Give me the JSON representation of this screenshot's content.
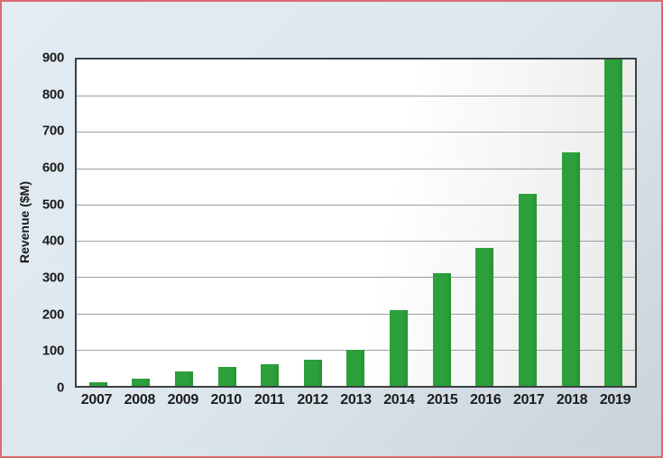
{
  "chart_data": {
    "type": "bar",
    "title": "",
    "xlabel": "",
    "ylabel": "Revenue ($M)",
    "categories": [
      "2007",
      "2008",
      "2009",
      "2010",
      "2011",
      "2012",
      "2013",
      "2014",
      "2015",
      "2016",
      "2017",
      "2018",
      "2019"
    ],
    "values": [
      10,
      20,
      40,
      52,
      60,
      73,
      100,
      210,
      312,
      380,
      530,
      645,
      900
    ],
    "ylim": [
      0,
      900
    ],
    "ytick_interval": 100,
    "ytick_labels": [
      "0",
      "100",
      "200",
      "300",
      "400",
      "500",
      "600",
      "700",
      "800",
      "900"
    ],
    "grid": true,
    "legend": false,
    "colors": {
      "bar": "#2ca03a",
      "bar_edge": "#279235",
      "gridline": "#9aa0a3",
      "axis_frame": "#3b4043",
      "outer_border": "#db6b70",
      "page_bg_top": "#e3ecf2",
      "page_bg_mid": "#dde7ee",
      "page_bg_bottom": "#c9d3d9",
      "plot_bg": "#ffffff",
      "plot_bg_shade": "#e8e8e8",
      "label_text": "#1c1c1c"
    }
  }
}
